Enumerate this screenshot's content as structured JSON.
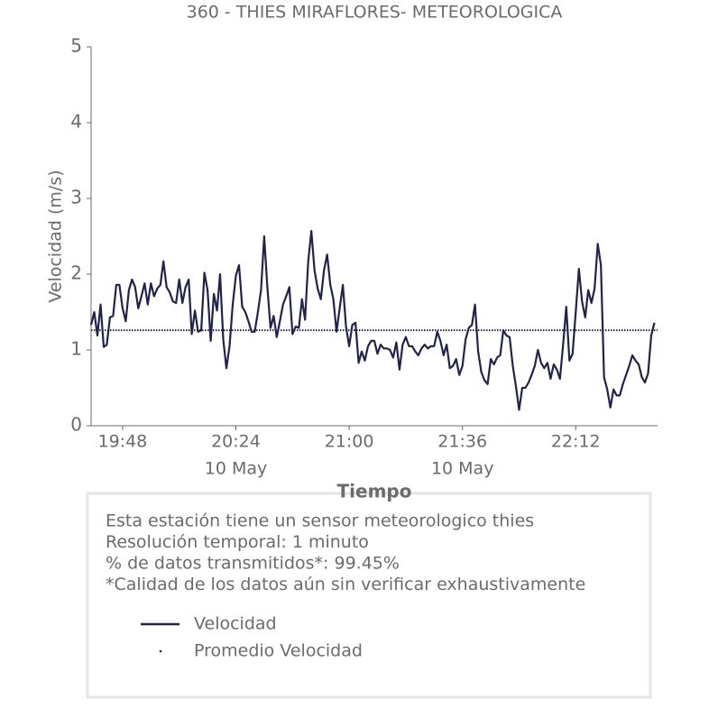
{
  "chart_data": {
    "type": "line",
    "title": "360 - THIES MIRAFLORES- METEOROLOGICA",
    "xlabel": "Tiempo",
    "ylabel": "Velocidad (m/s)",
    "x": [
      "19:38",
      "19:39",
      "19:40",
      "19:41",
      "19:42",
      "19:43",
      "19:44",
      "19:45",
      "19:46",
      "19:47",
      "19:48",
      "19:49",
      "19:50",
      "19:51",
      "19:52",
      "19:53",
      "19:54",
      "19:55",
      "19:56",
      "19:57",
      "19:58",
      "19:59",
      "20:00",
      "20:01",
      "20:02",
      "20:03",
      "20:04",
      "20:05",
      "20:06",
      "20:07",
      "20:08",
      "20:09",
      "20:10",
      "20:11",
      "20:12",
      "20:13",
      "20:14",
      "20:15",
      "20:16",
      "20:17",
      "20:18",
      "20:19",
      "20:20",
      "20:21",
      "20:22",
      "20:23",
      "20:24",
      "20:25",
      "20:26",
      "20:27",
      "20:28",
      "20:29",
      "20:30",
      "20:31",
      "20:32",
      "20:33",
      "20:34",
      "20:35",
      "20:36",
      "20:37",
      "20:38",
      "20:39",
      "20:40",
      "20:41",
      "20:42",
      "20:43",
      "20:44",
      "20:45",
      "20:46",
      "20:47",
      "20:48",
      "20:49",
      "20:50",
      "20:51",
      "20:52",
      "20:53",
      "20:54",
      "20:55",
      "20:56",
      "20:57",
      "20:58",
      "20:59",
      "21:00",
      "21:01",
      "21:02",
      "21:03",
      "21:04",
      "21:05",
      "21:06",
      "21:07",
      "21:08",
      "21:09",
      "21:10",
      "21:11",
      "21:12",
      "21:13",
      "21:14",
      "21:15",
      "21:16",
      "21:17",
      "21:18",
      "21:19",
      "21:20",
      "21:21",
      "21:22",
      "21:23",
      "21:24",
      "21:25",
      "21:26",
      "21:27",
      "21:28",
      "21:29",
      "21:30",
      "21:31",
      "21:32",
      "21:33",
      "21:34",
      "21:35",
      "21:36",
      "21:37",
      "21:38",
      "21:39",
      "21:40",
      "21:41",
      "21:42",
      "21:43",
      "21:44",
      "21:45",
      "21:46",
      "21:47",
      "21:48",
      "21:49",
      "21:50",
      "21:51",
      "21:52",
      "21:53",
      "21:54",
      "21:55",
      "21:56",
      "21:57",
      "21:58",
      "21:59",
      "22:00",
      "22:01",
      "22:02",
      "22:03",
      "22:04",
      "22:05",
      "22:06",
      "22:07",
      "22:08",
      "22:09",
      "22:10",
      "22:11",
      "22:12",
      "22:13",
      "22:14",
      "22:15",
      "22:16",
      "22:17",
      "22:18",
      "22:19",
      "22:20",
      "22:21",
      "22:22",
      "22:23",
      "22:24",
      "22:25",
      "22:26",
      "22:27",
      "22:28",
      "22:29",
      "22:30",
      "22:31",
      "22:32",
      "22:33",
      "22:34",
      "22:35",
      "22:36",
      "22:37"
    ],
    "series": [
      {
        "name": "Velocidad",
        "color": "#22234a",
        "values": [
          1.33,
          1.5,
          1.19,
          1.6,
          1.04,
          1.07,
          1.43,
          1.45,
          1.86,
          1.86,
          1.55,
          1.38,
          1.79,
          1.93,
          1.83,
          1.55,
          1.71,
          1.88,
          1.6,
          1.88,
          1.71,
          1.81,
          1.86,
          2.17,
          1.83,
          1.76,
          1.64,
          1.62,
          1.93,
          1.62,
          1.83,
          1.93,
          1.21,
          1.52,
          1.24,
          1.26,
          2.02,
          1.79,
          1.12,
          1.74,
          1.52,
          2.0,
          1.14,
          0.76,
          1.05,
          1.6,
          1.98,
          2.12,
          1.57,
          1.5,
          1.38,
          1.24,
          1.24,
          1.5,
          1.79,
          2.5,
          1.83,
          1.29,
          1.45,
          1.17,
          1.38,
          1.6,
          1.71,
          1.83,
          1.21,
          1.31,
          1.29,
          1.67,
          1.4,
          2.17,
          2.57,
          2.05,
          1.81,
          1.67,
          2.05,
          2.26,
          1.86,
          1.67,
          1.24,
          1.55,
          1.86,
          1.31,
          1.05,
          1.33,
          1.36,
          0.83,
          0.98,
          0.86,
          1.05,
          1.12,
          1.12,
          0.95,
          1.07,
          1.02,
          1.02,
          1.0,
          0.9,
          1.1,
          0.74,
          1.07,
          1.17,
          1.05,
          1.05,
          0.98,
          0.93,
          1.02,
          1.07,
          1.02,
          1.05,
          1.05,
          1.24,
          1.12,
          0.93,
          1.07,
          0.76,
          0.79,
          0.88,
          0.67,
          0.79,
          1.14,
          1.29,
          1.33,
          1.6,
          0.98,
          0.71,
          0.6,
          0.55,
          0.88,
          0.81,
          0.9,
          0.93,
          1.26,
          1.19,
          1.17,
          0.79,
          0.52,
          0.21,
          0.5,
          0.5,
          0.57,
          0.67,
          0.79,
          1.0,
          0.83,
          0.76,
          0.83,
          0.62,
          0.81,
          0.74,
          0.62,
          1.07,
          1.57,
          0.86,
          0.95,
          1.5,
          2.07,
          1.64,
          1.43,
          1.79,
          1.62,
          1.81,
          2.4,
          2.12,
          0.64,
          0.48,
          0.24,
          0.48,
          0.4,
          0.4,
          0.55,
          0.67,
          0.79,
          0.93,
          0.86,
          0.81,
          0.64,
          0.57,
          0.69,
          1.19,
          1.36
        ]
      },
      {
        "name": "Promedio Velocidad",
        "color": "#22234a",
        "value": 1.26,
        "style": "dotted"
      }
    ],
    "xlim": [
      "19:38",
      "22:38"
    ],
    "xticks": [
      "19:48",
      "20:24",
      "21:00",
      "21:36",
      "22:12"
    ],
    "xtick_dates": [
      null,
      "10 May",
      null,
      "10 May",
      null
    ],
    "ylim": [
      0,
      5
    ],
    "yticks": [
      0,
      1,
      2,
      3,
      4,
      5
    ],
    "grid": false,
    "info": [
      "Esta estación tiene un sensor meteorologico thies",
      "Resolución temporal: 1 minuto",
      "% de datos transmitidos*: 99.45%",
      "*Calidad de los datos aún sin verificar exhaustivamente"
    ]
  }
}
